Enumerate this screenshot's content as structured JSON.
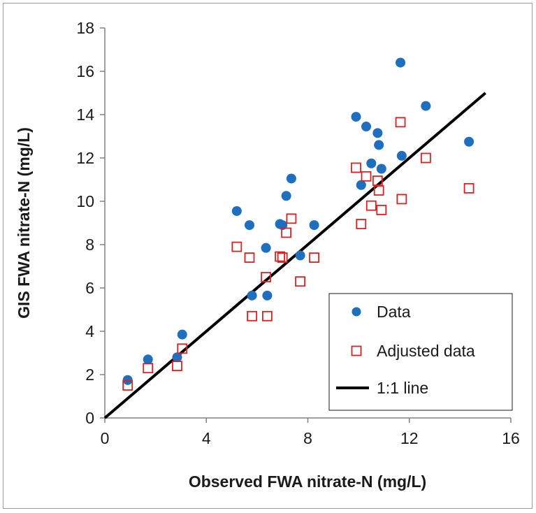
{
  "chart_data": {
    "type": "scatter",
    "xlabel": "Observed FWA nitrate-N (mg/L)",
    "ylabel": "GIS FWA nitrate-N (mg/L)",
    "xlim": [
      0,
      16
    ],
    "ylim": [
      0,
      18
    ],
    "x_ticks": [
      "0",
      "4",
      "8",
      "12",
      "16"
    ],
    "y_ticks": [
      "0",
      "2",
      "4",
      "6",
      "8",
      "10",
      "12",
      "14",
      "16",
      "18"
    ],
    "grid": false,
    "legend_position": "bottom-right",
    "series": [
      {
        "name": "Data",
        "marker": "circle",
        "color": "#1f6fbf",
        "points": [
          [
            0.9,
            1.75
          ],
          [
            1.7,
            2.7
          ],
          [
            2.85,
            2.8
          ],
          [
            3.05,
            3.85
          ],
          [
            5.2,
            9.55
          ],
          [
            5.7,
            8.9
          ],
          [
            5.8,
            5.65
          ],
          [
            6.35,
            7.85
          ],
          [
            6.4,
            5.65
          ],
          [
            6.9,
            8.95
          ],
          [
            7.0,
            8.9
          ],
          [
            7.15,
            10.25
          ],
          [
            7.35,
            11.05
          ],
          [
            7.7,
            7.5
          ],
          [
            8.25,
            8.9
          ],
          [
            9.9,
            13.9
          ],
          [
            10.1,
            10.75
          ],
          [
            10.3,
            13.45
          ],
          [
            10.5,
            11.75
          ],
          [
            10.75,
            13.15
          ],
          [
            10.8,
            12.6
          ],
          [
            10.9,
            11.5
          ],
          [
            11.65,
            16.4
          ],
          [
            11.7,
            12.1
          ],
          [
            12.65,
            14.4
          ],
          [
            14.35,
            12.75
          ]
        ]
      },
      {
        "name": "Adjusted data",
        "marker": "open-square",
        "color": "#e02020",
        "points": [
          [
            0.9,
            1.5
          ],
          [
            1.7,
            2.3
          ],
          [
            2.85,
            2.4
          ],
          [
            3.05,
            3.2
          ],
          [
            5.2,
            7.9
          ],
          [
            5.7,
            7.4
          ],
          [
            5.8,
            4.7
          ],
          [
            6.35,
            6.5
          ],
          [
            6.4,
            4.7
          ],
          [
            6.9,
            7.45
          ],
          [
            7.0,
            7.4
          ],
          [
            7.15,
            8.55
          ],
          [
            7.35,
            9.2
          ],
          [
            7.7,
            6.3
          ],
          [
            8.25,
            7.4
          ],
          [
            9.9,
            11.55
          ],
          [
            10.1,
            8.95
          ],
          [
            10.3,
            11.15
          ],
          [
            10.5,
            9.8
          ],
          [
            10.75,
            10.95
          ],
          [
            10.8,
            10.5
          ],
          [
            10.9,
            9.6
          ],
          [
            11.65,
            13.65
          ],
          [
            11.7,
            10.1
          ],
          [
            12.65,
            12.0
          ],
          [
            14.35,
            10.6
          ]
        ]
      },
      {
        "name": "1:1 line",
        "marker": "line",
        "color": "#000000",
        "points": [
          [
            0,
            0
          ],
          [
            15,
            15
          ]
        ]
      }
    ]
  }
}
